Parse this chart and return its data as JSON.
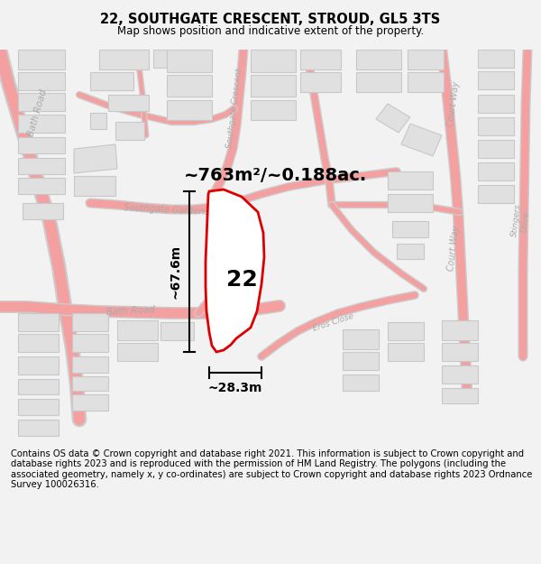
{
  "title": "22, SOUTHGATE CRESCENT, STROUD, GL5 3TS",
  "subtitle": "Map shows position and indicative extent of the property.",
  "area_label": "~763m²/~0.188ac.",
  "property_number": "22",
  "dim_height": "~67.6m",
  "dim_width": "~28.3m",
  "footer": "Contains OS data © Crown copyright and database right 2021. This information is subject to Crown copyright and database rights 2023 and is reproduced with the permission of HM Land Registry. The polygons (including the associated geometry, namely x, y co-ordinates) are subject to Crown copyright and database rights 2023 Ordnance Survey 100026316.",
  "bg_color": "#f2f2f2",
  "map_bg": "#ffffff",
  "plot_outline_color": "#dd0000",
  "road_color": "#f5a0a0",
  "road_outline_color": "#e08080",
  "building_color": "#e0e0e0",
  "building_edge": "#c8c8c8",
  "label_color": "#aaaaaa",
  "title_fontsize": 10.5,
  "subtitle_fontsize": 8.5,
  "footer_fontsize": 7.2,
  "figsize": [
    6.0,
    6.25
  ]
}
